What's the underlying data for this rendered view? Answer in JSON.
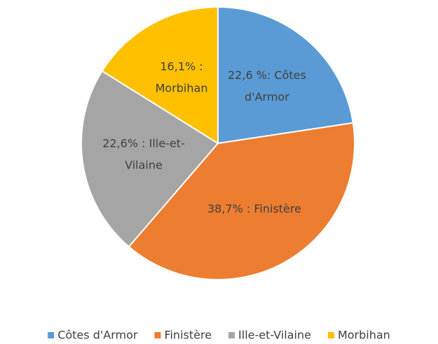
{
  "chart_data": {
    "type": "pie",
    "categories": [
      "Côtes d'Armor",
      "Finistère",
      "Ille-et-Vilaine",
      "Morbihan"
    ],
    "values": [
      22.6,
      38.7,
      22.6,
      16.1
    ],
    "value_labels": [
      [
        "22,6 %: Côtes",
        "d'Armor"
      ],
      [
        "38,7% : Finistère"
      ],
      [
        "22,6% : Ille-et-",
        "Vilaine"
      ],
      [
        "16,1% :",
        "Morbihan"
      ]
    ],
    "colors": [
      "#5b9bd5",
      "#ed7d31",
      "#a5a5a5",
      "#ffc000"
    ],
    "legend": "bottom"
  }
}
